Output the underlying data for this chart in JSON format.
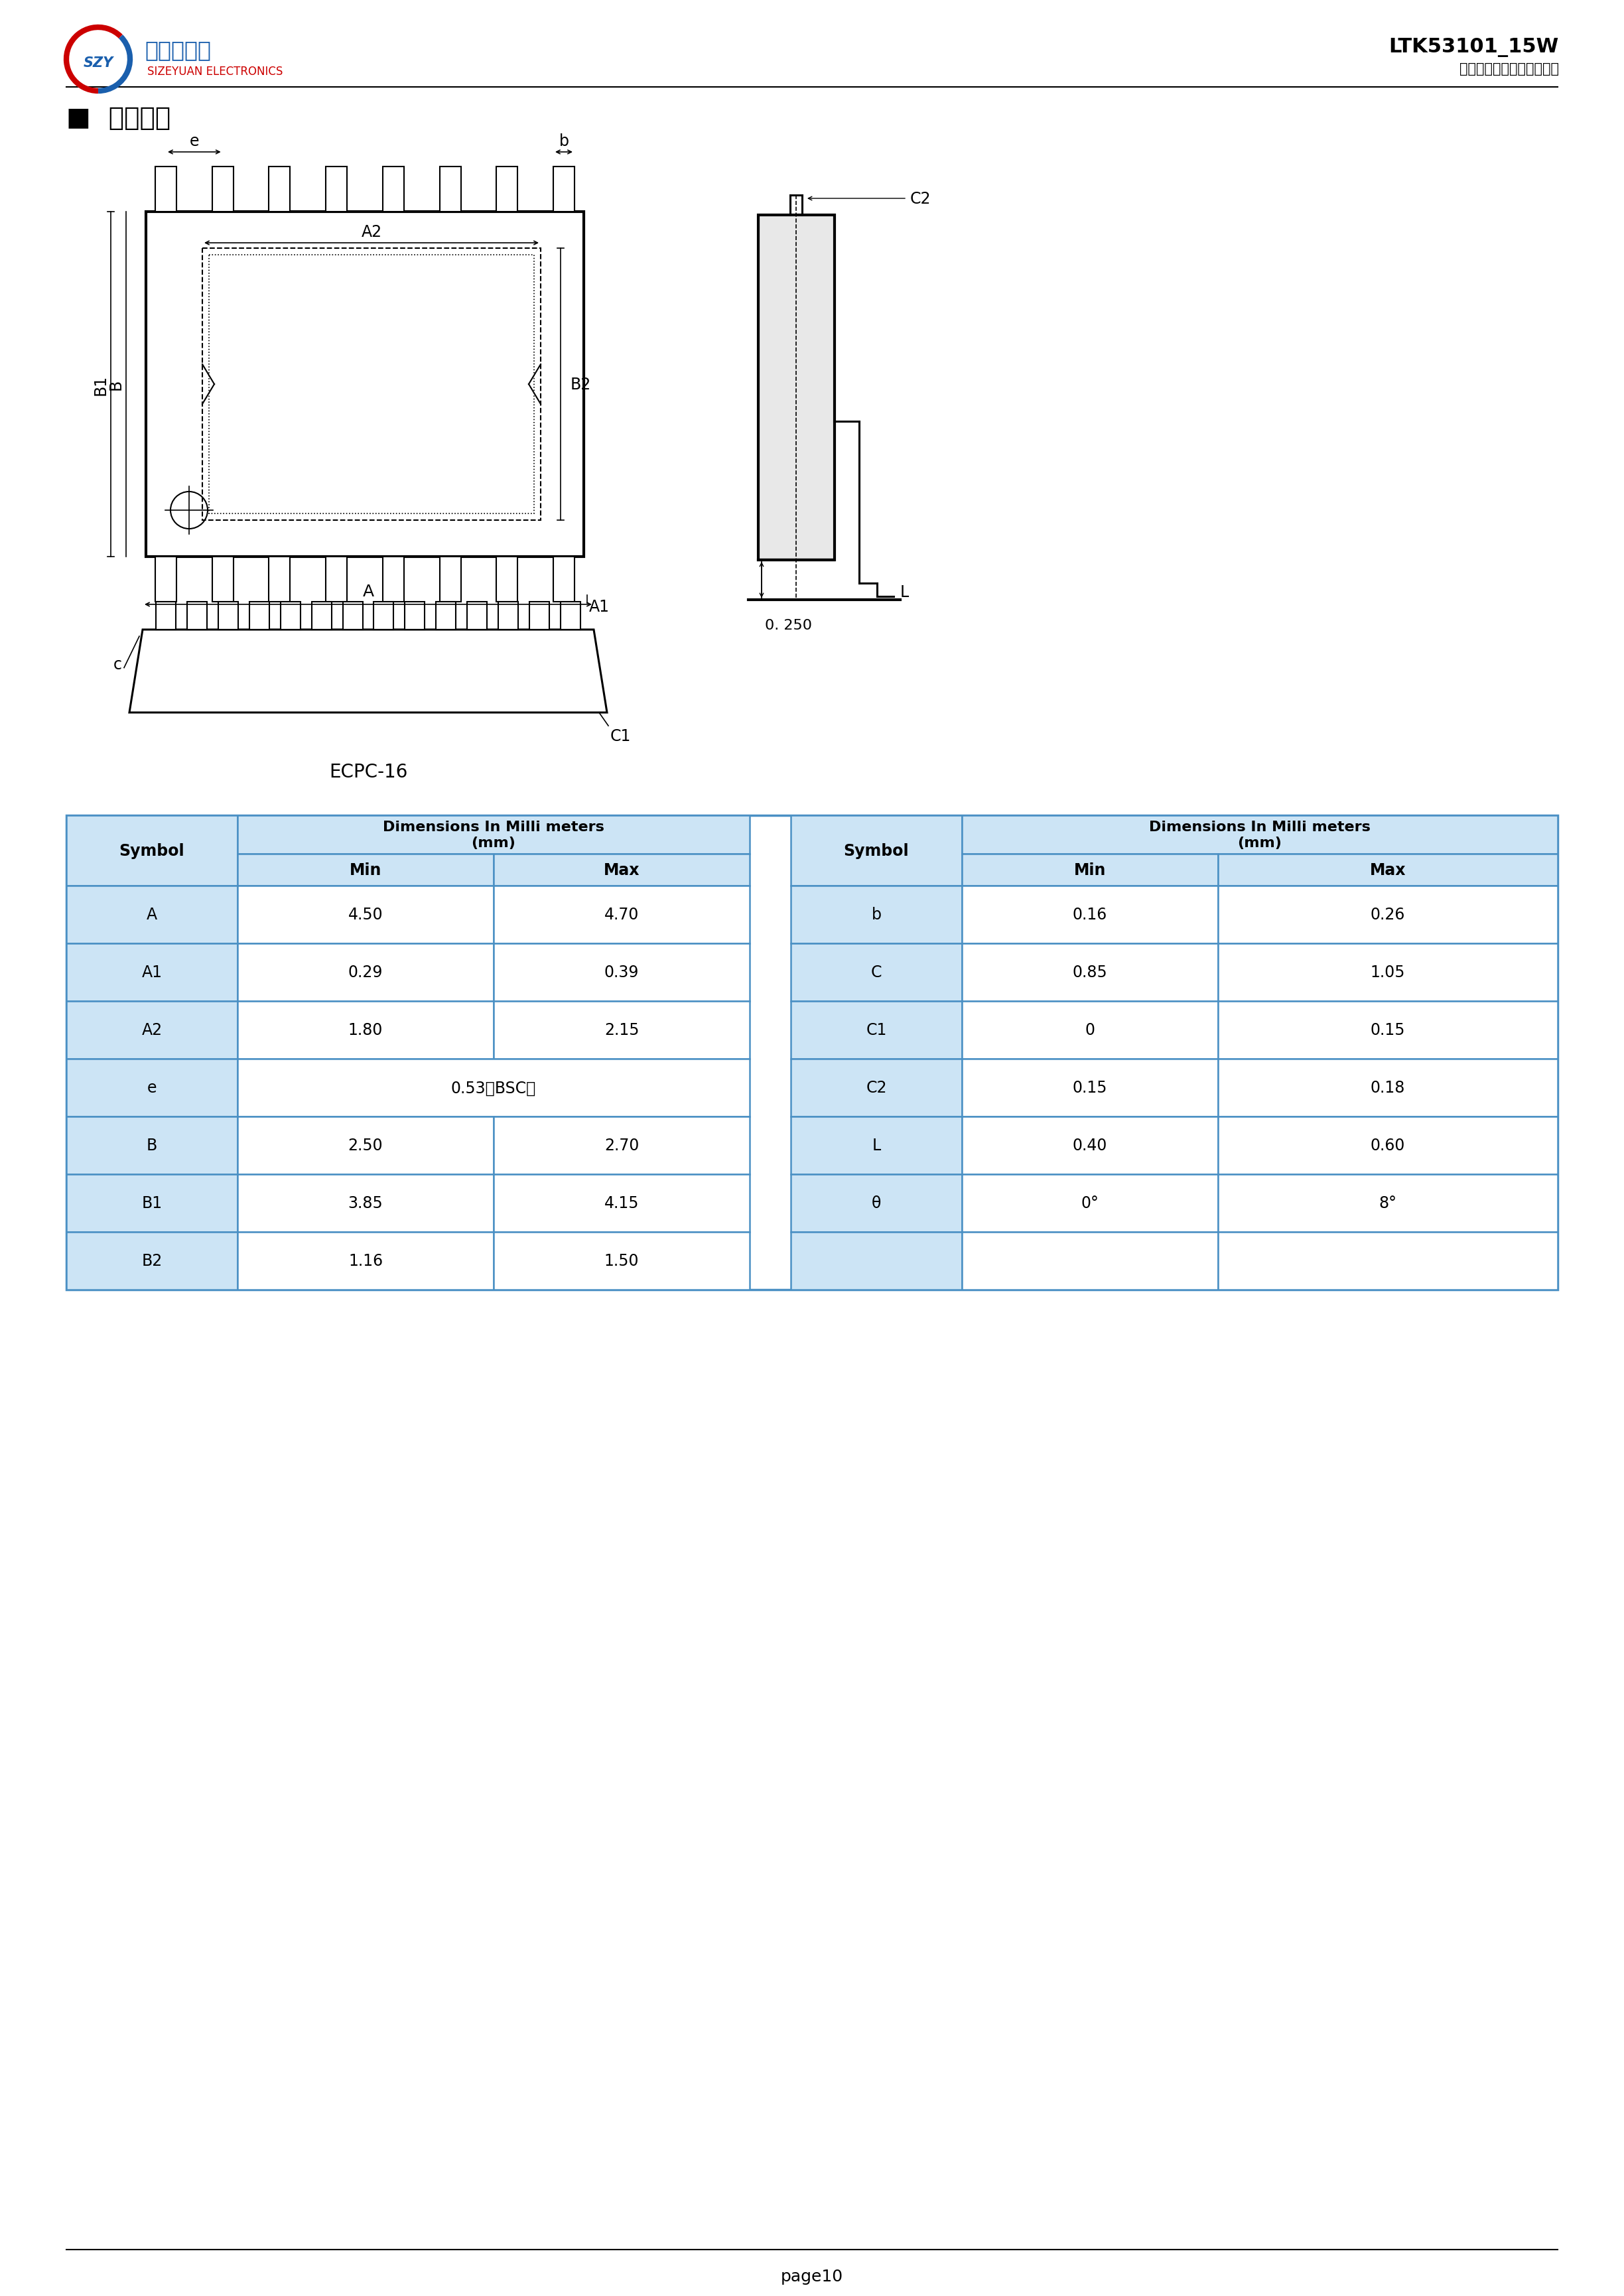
{
  "page_title_right": "LTK53101_15W",
  "page_subtitle_right": "深圳市思泽远电子有限公司",
  "section_title": "■  封装信息",
  "package_label": "ECPC-16",
  "page_footer": "page10",
  "table_header_bg": "#cce4f5",
  "table_border_color": "#4a90c4",
  "table_data": [
    [
      "A",
      "4.50",
      "4.70",
      "b",
      "0.16",
      "0.26"
    ],
    [
      "A1",
      "0.29",
      "0.39",
      "C",
      "0.85",
      "1.05"
    ],
    [
      "A2",
      "1.80",
      "2.15",
      "C1",
      "0",
      "0.15"
    ],
    [
      "e",
      "0.53（BSC）",
      "",
      "C2",
      "0.15",
      "0.18"
    ],
    [
      "B",
      "2.50",
      "2.70",
      "L",
      "0.40",
      "0.60"
    ],
    [
      "B1",
      "3.85",
      "4.15",
      "θ",
      "0°",
      "8°"
    ],
    [
      "B2",
      "1.16",
      "1.50",
      "",
      "",
      ""
    ]
  ],
  "background_color": "#ffffff",
  "line_color": "#000000",
  "logo_text1": "思泽远电子",
  "logo_text2": "SIZEYUAN ELECTRONICS"
}
